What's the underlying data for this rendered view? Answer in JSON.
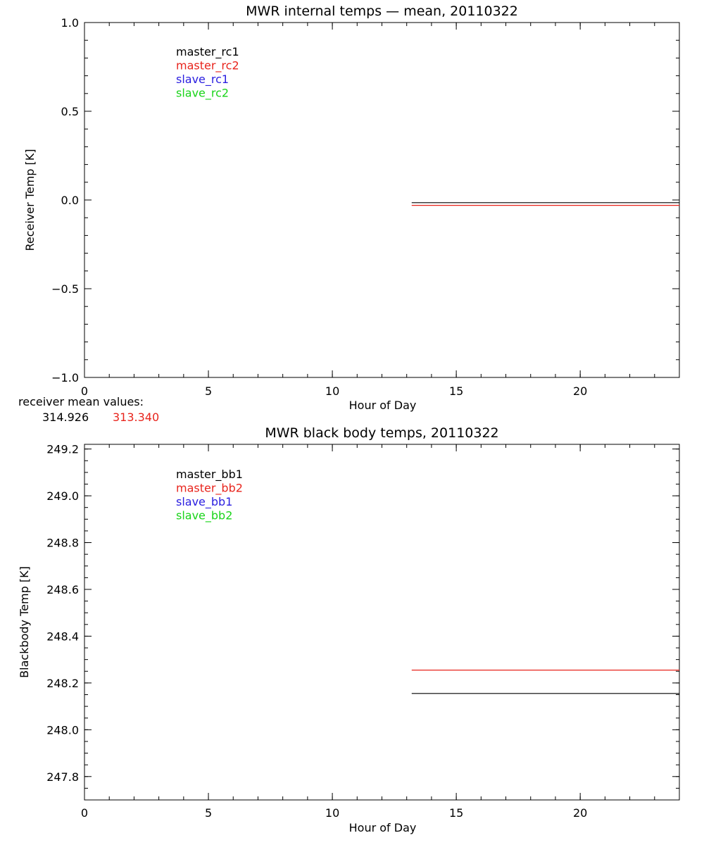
{
  "colors": {
    "background": "#ffffff",
    "axes": "#000000",
    "black": "#000000",
    "red": "#e8241c",
    "blue": "#2a1ee0",
    "green": "#19d419"
  },
  "mean_values": {
    "label": "receiver mean values:",
    "values": [
      {
        "text": "314.926",
        "color": "#000000"
      },
      {
        "text": "313.340",
        "color": "#e8241c"
      }
    ]
  },
  "chart_data": [
    {
      "type": "line",
      "title": "MWR internal temps — mean, 20110322",
      "xlabel": "Hour of Day",
      "ylabel": "Receiver Temp [K]",
      "xlim": [
        0,
        24
      ],
      "ylim": [
        -1.0,
        1.0
      ],
      "xticks": [
        0,
        5,
        10,
        15,
        20
      ],
      "xtick_labels": [
        "0",
        "5",
        "10",
        "15",
        "20"
      ],
      "yticks": [
        -1.0,
        -0.5,
        0.0,
        0.5,
        1.0
      ],
      "ytick_labels": [
        "−1.0",
        "−0.5",
        "0.0",
        "0.5",
        "1.0"
      ],
      "x_minor_step": 1,
      "y_minor_step": 0.1,
      "grid": false,
      "legend_position": "top-left",
      "series": [
        {
          "name": "master_rc1",
          "color": "#000000",
          "x": [
            13.2,
            24.0
          ],
          "y": [
            -0.015,
            -0.015
          ]
        },
        {
          "name": "master_rc2",
          "color": "#e8241c",
          "x": [
            13.2,
            24.0
          ],
          "y": [
            -0.03,
            -0.03
          ]
        },
        {
          "name": "slave_rc1",
          "color": "#2a1ee0",
          "x": [],
          "y": []
        },
        {
          "name": "slave_rc2",
          "color": "#19d419",
          "x": [],
          "y": []
        }
      ]
    },
    {
      "type": "line",
      "title": "MWR black body temps, 20110322",
      "xlabel": "Hour of Day",
      "ylabel": "Blackbody Temp [K]",
      "xlim": [
        0,
        24
      ],
      "ylim": [
        247.7,
        249.22
      ],
      "xticks": [
        0,
        5,
        10,
        15,
        20
      ],
      "xtick_labels": [
        "0",
        "5",
        "10",
        "15",
        "20"
      ],
      "yticks": [
        247.8,
        248.0,
        248.2,
        248.4,
        248.6,
        248.8,
        249.0,
        249.2
      ],
      "ytick_labels": [
        "247.8",
        "248.0",
        "248.2",
        "248.4",
        "248.6",
        "248.8",
        "249.0",
        "249.2"
      ],
      "x_minor_step": 1,
      "y_minor_step": 0.05,
      "grid": false,
      "legend_position": "top-left",
      "series": [
        {
          "name": "master_bb1",
          "color": "#000000",
          "x": [
            13.2,
            24.0
          ],
          "y": [
            248.155,
            248.155
          ]
        },
        {
          "name": "master_bb2",
          "color": "#e8241c",
          "x": [
            13.2,
            24.0
          ],
          "y": [
            248.255,
            248.255
          ]
        },
        {
          "name": "slave_bb1",
          "color": "#2a1ee0",
          "x": [],
          "y": []
        },
        {
          "name": "slave_bb2",
          "color": "#19d419",
          "x": [],
          "y": []
        }
      ]
    }
  ]
}
